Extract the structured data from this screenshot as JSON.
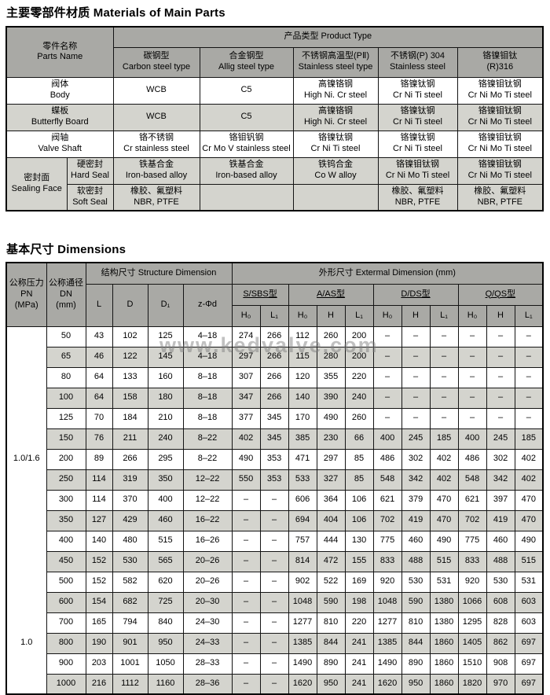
{
  "page": {
    "title_materials": "主要零部件材质 Materials of Main Parts",
    "title_dimensions": "基本尺寸 Dimensions",
    "watermark": "www.kedvalve.com"
  },
  "materials": {
    "header": {
      "parts_name": "零件名称\nParts Name",
      "product_type": "产品类型 Product Type",
      "types": [
        "碳钢型\nCarbon steel type",
        "合金钢型\nAllig steel type",
        "不锈钢高温型(PⅡ)\nStainless steel type",
        "不锈钢(P) 304\nStainless steel",
        "铬镍钼钛\n(R)316"
      ]
    },
    "rows": [
      {
        "name": "阀体\nBody",
        "shade": false,
        "cells": [
          "WCB",
          "C5",
          "高镍铬钢\nHigh Ni. Cr steel",
          "铬镍钛钢\nCr Ni Ti steel",
          "铬镍钼钛钢\nCr Ni Mo Ti steel"
        ]
      },
      {
        "name": "蝶板\nButterfly Board",
        "shade": true,
        "cells": [
          "WCB",
          "C5",
          "高镍铬钢\nHigh Ni. Cr steel",
          "铬镍钛钢\nCr Ni Ti steel",
          "铬镍钼钛钢\nCr Ni Mo Ti steel"
        ]
      },
      {
        "name": "阀轴\nValve Shaft",
        "shade": false,
        "cells": [
          "铬不锈钢\nCr stainless steel",
          "铬钼钒钢\nCr Mo V stainless steel",
          "铬镍钛钢\nCr Ni Ti steel",
          "铬镍钛钢\nCr Ni Ti steel",
          "铬镍钼钛钢\nCr Ni Mo Ti steel"
        ]
      }
    ],
    "seal": {
      "group": "密封面\nSealing Face",
      "hard": {
        "name": "硬密封\nHard Seal",
        "cells": [
          "铁基合金\nIron-based alloy",
          "铁基合金\nIron-based alloy",
          "铁钨合金\nCo W alloy",
          "铬镍钼钛钢\nCr Ni Mo Ti steel",
          "铬镍钼钛钢\nCr Ni Mo Ti steel"
        ]
      },
      "soft": {
        "name": "软密封\nSoft Seal",
        "cells": [
          "橡胶、氟塑料\nNBR, PTFE",
          "",
          "",
          "橡胶、氟塑料\nNBR, PTFE",
          "橡胶、氟塑料\nNBR, PTFE"
        ]
      }
    }
  },
  "dimensions": {
    "header": {
      "pn": "公称压力\nPN\n(MPa)",
      "dn": "公称通径\nDN\n(mm)",
      "structure": "结构尺寸 Structure Dimension",
      "external": "外形尺寸 Extermal Dimension (mm)",
      "structure_cols": [
        "L",
        "D",
        "D₁",
        "z-Φd"
      ],
      "groups": [
        {
          "label": "S/SBS型",
          "cols": [
            "H₀",
            "L₁"
          ]
        },
        {
          "label": "A/AS型",
          "cols": [
            "H₀",
            "H",
            "L₁"
          ]
        },
        {
          "label": "D/DS型",
          "cols": [
            "H₀",
            "H",
            "L₁"
          ]
        },
        {
          "label": "Q/QS型",
          "cols": [
            "H₀",
            "H",
            "L₁"
          ]
        }
      ]
    },
    "pn_groups": [
      {
        "label": "1.0/1.6",
        "span": 13
      },
      {
        "label": "1.0",
        "span": 5
      }
    ],
    "rows": [
      [
        "50",
        "43",
        "102",
        "125",
        "4–18",
        "274",
        "266",
        "112",
        "260",
        "200",
        "–",
        "–",
        "–",
        "–",
        "–",
        "–"
      ],
      [
        "65",
        "46",
        "122",
        "145",
        "4–18",
        "297",
        "266",
        "115",
        "280",
        "200",
        "–",
        "–",
        "–",
        "–",
        "–",
        "–"
      ],
      [
        "80",
        "64",
        "133",
        "160",
        "8–18",
        "307",
        "266",
        "120",
        "355",
        "220",
        "–",
        "–",
        "–",
        "–",
        "–",
        "–"
      ],
      [
        "100",
        "64",
        "158",
        "180",
        "8–18",
        "347",
        "266",
        "140",
        "390",
        "240",
        "–",
        "–",
        "–",
        "–",
        "–",
        "–"
      ],
      [
        "125",
        "70",
        "184",
        "210",
        "8–18",
        "377",
        "345",
        "170",
        "490",
        "260",
        "–",
        "–",
        "–",
        "–",
        "–",
        "–"
      ],
      [
        "150",
        "76",
        "211",
        "240",
        "8–22",
        "402",
        "345",
        "385",
        "230",
        "66",
        "400",
        "245",
        "185",
        "400",
        "245",
        "185"
      ],
      [
        "200",
        "89",
        "266",
        "295",
        "8–22",
        "490",
        "353",
        "471",
        "297",
        "85",
        "486",
        "302",
        "402",
        "486",
        "302",
        "402"
      ],
      [
        "250",
        "114",
        "319",
        "350",
        "12–22",
        "550",
        "353",
        "533",
        "327",
        "85",
        "548",
        "342",
        "402",
        "548",
        "342",
        "402"
      ],
      [
        "300",
        "114",
        "370",
        "400",
        "12–22",
        "–",
        "–",
        "606",
        "364",
        "106",
        "621",
        "379",
        "470",
        "621",
        "397",
        "470"
      ],
      [
        "350",
        "127",
        "429",
        "460",
        "16–22",
        "–",
        "–",
        "694",
        "404",
        "106",
        "702",
        "419",
        "470",
        "702",
        "419",
        "470"
      ],
      [
        "400",
        "140",
        "480",
        "515",
        "16–26",
        "–",
        "–",
        "757",
        "444",
        "130",
        "775",
        "460",
        "490",
        "775",
        "460",
        "490"
      ],
      [
        "450",
        "152",
        "530",
        "565",
        "20–26",
        "–",
        "–",
        "814",
        "472",
        "155",
        "833",
        "488",
        "515",
        "833",
        "488",
        "515"
      ],
      [
        "500",
        "152",
        "582",
        "620",
        "20–26",
        "–",
        "–",
        "902",
        "522",
        "169",
        "920",
        "530",
        "531",
        "920",
        "530",
        "531"
      ],
      [
        "600",
        "154",
        "682",
        "725",
        "20–30",
        "–",
        "–",
        "1048",
        "590",
        "198",
        "1048",
        "590",
        "1380",
        "1066",
        "608",
        "603"
      ],
      [
        "700",
        "165",
        "794",
        "840",
        "24–30",
        "–",
        "–",
        "1277",
        "810",
        "220",
        "1277",
        "810",
        "1380",
        "1295",
        "828",
        "603"
      ],
      [
        "800",
        "190",
        "901",
        "950",
        "24–33",
        "–",
        "–",
        "1385",
        "844",
        "241",
        "1385",
        "844",
        "1860",
        "1405",
        "862",
        "697"
      ],
      [
        "900",
        "203",
        "1001",
        "1050",
        "28–33",
        "–",
        "–",
        "1490",
        "890",
        "241",
        "1490",
        "890",
        "1860",
        "1510",
        "908",
        "697"
      ],
      [
        "1000",
        "216",
        "1112",
        "1160",
        "28–36",
        "–",
        "–",
        "1620",
        "950",
        "241",
        "1620",
        "950",
        "1860",
        "1820",
        "970",
        "697"
      ]
    ]
  }
}
